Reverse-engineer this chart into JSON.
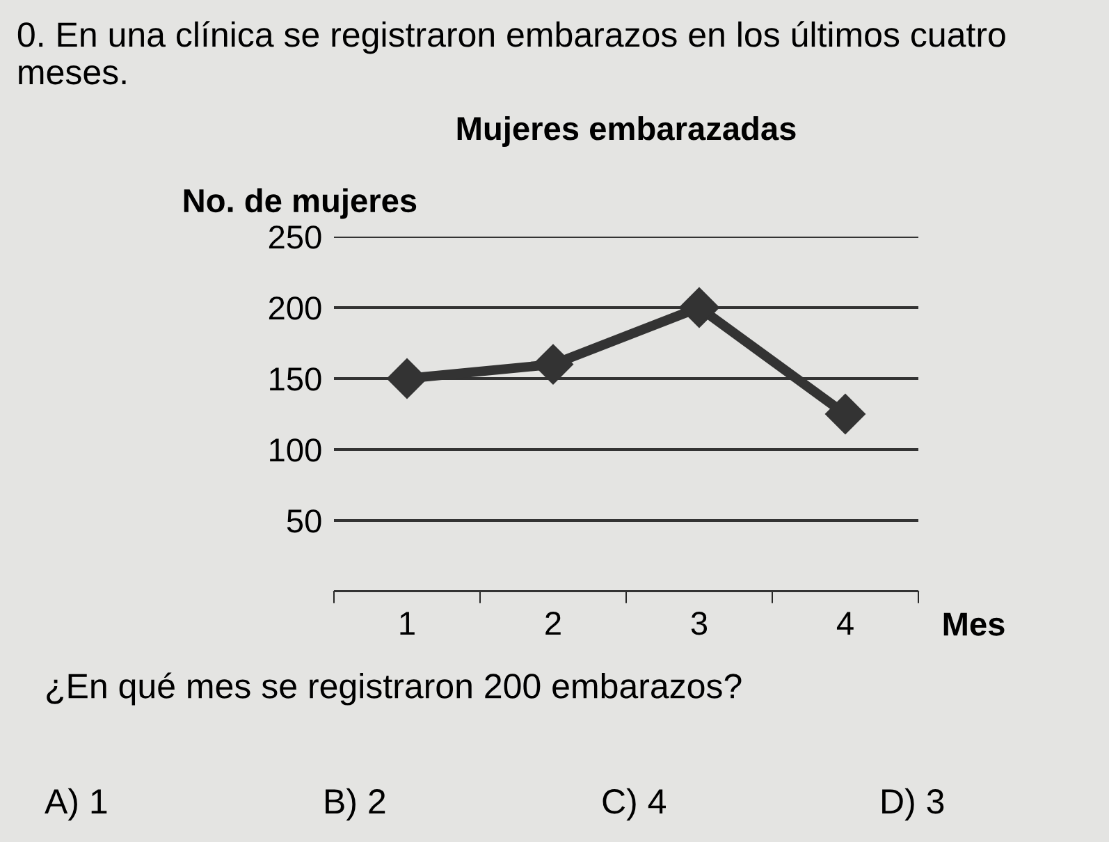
{
  "chart_data": {
    "type": "line",
    "title": "Mujeres embarazadas",
    "ylabel": "No. de mujeres",
    "xlabel": "Mes",
    "categories": [
      "1",
      "2",
      "3",
      "4"
    ],
    "series": [
      {
        "color": "#333333",
        "values": [
          150,
          160,
          200,
          125
        ]
      }
    ],
    "ylim": [
      0,
      250
    ],
    "yticks": [
      {
        "value": 0,
        "label": null
      },
      50,
      100,
      150,
      200,
      250
    ],
    "grid": "y",
    "legend": false,
    "marker": "diamond",
    "line_style": "solid",
    "annotations": [
      "0. En una clínica se registraron embarazos en los últimos cuatro meses.",
      "¿En qué mes se registraron 200 embarazos?",
      "A) 1",
      "B) 2",
      "C) 4",
      "D) 3"
    ]
  }
}
